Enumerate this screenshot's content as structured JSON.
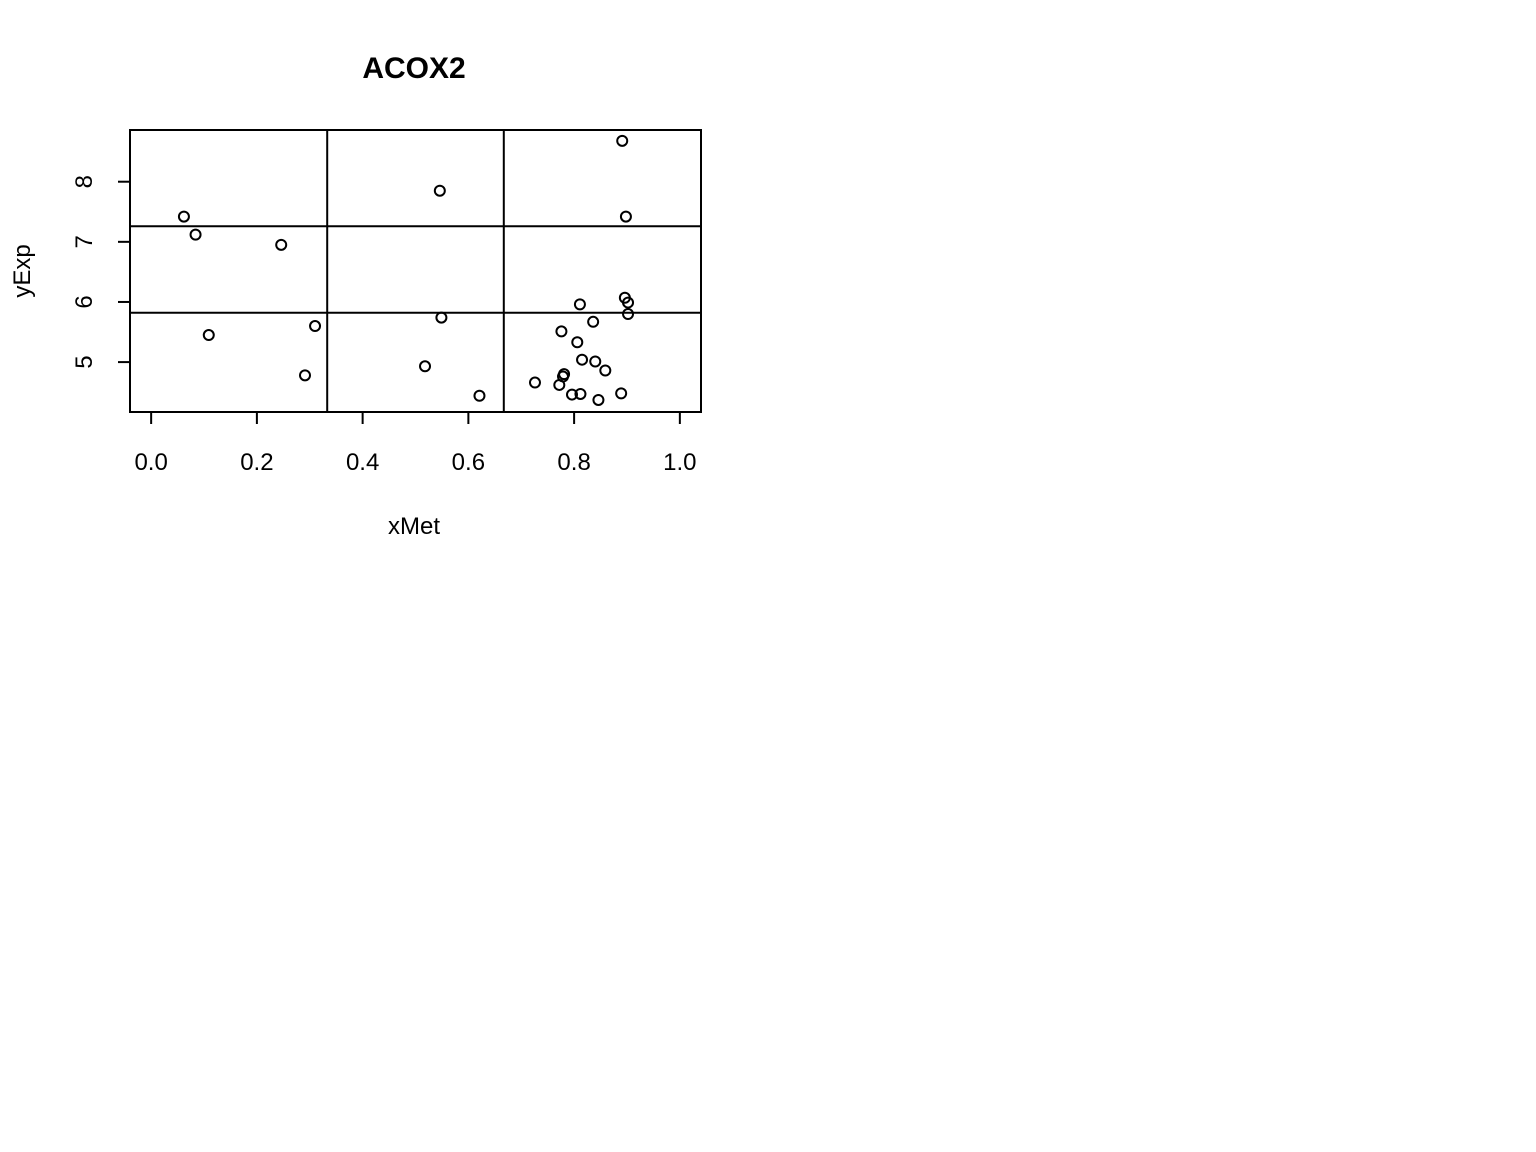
{
  "chart_data": {
    "type": "scatter",
    "title": "ACOX2",
    "xlabel": "xMet",
    "ylabel": "yExp",
    "xlim": [
      -0.04,
      1.04
    ],
    "ylim": [
      4.17,
      8.86
    ],
    "x_ticks": [
      0.0,
      0.2,
      0.4,
      0.6,
      0.8,
      1.0
    ],
    "x_tick_labels": [
      "0.0",
      "0.2",
      "0.4",
      "0.6",
      "0.8",
      "1.0"
    ],
    "y_ticks": [
      5,
      6,
      7,
      8
    ],
    "y_tick_labels": [
      "5",
      "6",
      "7",
      "8"
    ],
    "vertical_lines": [
      0.333,
      0.667
    ],
    "horizontal_lines": [
      5.82,
      7.26
    ],
    "grid": false,
    "legend": "none",
    "marker": "open-circle",
    "color": "#000000",
    "points": [
      {
        "x": 0.062,
        "y": 7.42
      },
      {
        "x": 0.084,
        "y": 7.12
      },
      {
        "x": 0.246,
        "y": 6.95
      },
      {
        "x": 0.109,
        "y": 5.45
      },
      {
        "x": 0.31,
        "y": 5.6
      },
      {
        "x": 0.291,
        "y": 4.78
      },
      {
        "x": 0.546,
        "y": 7.85
      },
      {
        "x": 0.549,
        "y": 5.74
      },
      {
        "x": 0.518,
        "y": 4.93
      },
      {
        "x": 0.621,
        "y": 4.44
      },
      {
        "x": 0.891,
        "y": 8.68
      },
      {
        "x": 0.898,
        "y": 7.42
      },
      {
        "x": 0.811,
        "y": 5.96
      },
      {
        "x": 0.896,
        "y": 6.07
      },
      {
        "x": 0.902,
        "y": 5.99
      },
      {
        "x": 0.902,
        "y": 5.8
      },
      {
        "x": 0.776,
        "y": 5.51
      },
      {
        "x": 0.836,
        "y": 5.67
      },
      {
        "x": 0.806,
        "y": 5.33
      },
      {
        "x": 0.815,
        "y": 5.04
      },
      {
        "x": 0.84,
        "y": 5.01
      },
      {
        "x": 0.859,
        "y": 4.86
      },
      {
        "x": 0.781,
        "y": 4.8
      },
      {
        "x": 0.779,
        "y": 4.76
      },
      {
        "x": 0.726,
        "y": 4.66
      },
      {
        "x": 0.772,
        "y": 4.62
      },
      {
        "x": 0.796,
        "y": 4.46
      },
      {
        "x": 0.812,
        "y": 4.47
      },
      {
        "x": 0.846,
        "y": 4.37
      },
      {
        "x": 0.889,
        "y": 4.48
      }
    ]
  }
}
